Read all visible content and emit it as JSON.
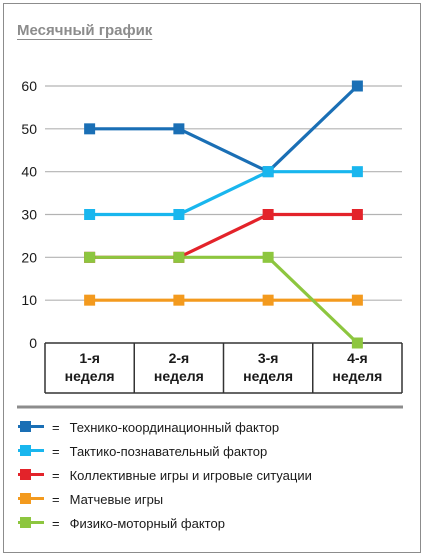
{
  "chart_data": {
    "type": "line",
    "title": "Месячный график",
    "xlabel": "",
    "ylabel": "",
    "categories": [
      "1-я\nнеделя",
      "2-я\nнеделя",
      "3-я\nнеделя",
      "4-я\nнеделя"
    ],
    "ylim": [
      0,
      60
    ],
    "yticks": [
      "0",
      "10",
      "20",
      "30",
      "40",
      "50",
      "60"
    ],
    "grid": true,
    "legend_position": "bottom",
    "series": [
      {
        "name": "Технико-координационный фактор",
        "color": "#1a6fb5",
        "values": [
          50,
          50,
          40,
          60
        ]
      },
      {
        "name": "Тактико-познавательный фактор",
        "color": "#19b6ee",
        "values": [
          30,
          30,
          40,
          40
        ]
      },
      {
        "name": "Коллективные игры и игровые ситуации",
        "color": "#e3232a",
        "values": [
          20,
          20,
          30,
          30
        ]
      },
      {
        "name": "Матчевые игры",
        "color": "#f39a1e",
        "values": [
          10,
          10,
          10,
          10
        ]
      },
      {
        "name": "Физико-моторный фактор",
        "color": "#8dc63f",
        "values": [
          20,
          20,
          20,
          0
        ]
      }
    ]
  },
  "legend": {
    "equals_sign": "="
  }
}
